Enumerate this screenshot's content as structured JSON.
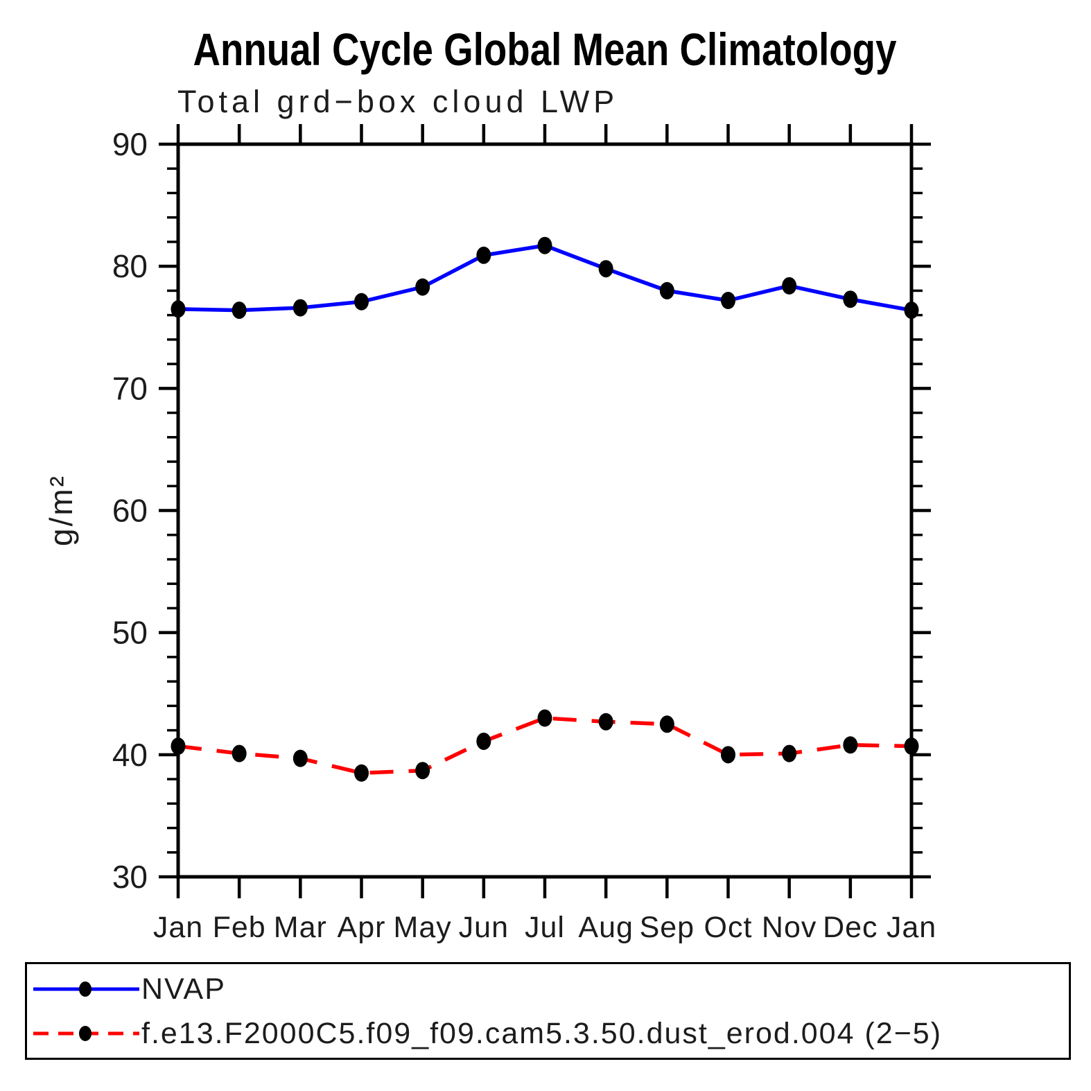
{
  "figure": {
    "background_color": "#ffffff",
    "axis_color": "#000000"
  },
  "chart_data": {
    "type": "line",
    "title": "Annual Cycle Global Mean Climatology",
    "subtitle": "Total grd−box cloud LWP",
    "ylabel": "g/m²",
    "xlabel": "",
    "categories": [
      "Jan",
      "Feb",
      "Mar",
      "Apr",
      "May",
      "Jun",
      "Jul",
      "Aug",
      "Sep",
      "Oct",
      "Nov",
      "Dec",
      "Jan"
    ],
    "ylim": [
      30,
      90
    ],
    "ytick_major": [
      30,
      40,
      50,
      60,
      70,
      80,
      90
    ],
    "ytick_minor_step": 2,
    "grid": false,
    "legend_position": "bottom",
    "series": [
      {
        "name": "NVAP",
        "line_style": "solid",
        "color": "#0000ff",
        "marker": "filled-circle",
        "marker_color": "#000000",
        "values": [
          76.5,
          76.4,
          76.6,
          77.1,
          78.3,
          80.9,
          81.7,
          79.8,
          78.0,
          77.2,
          78.4,
          77.3,
          76.4
        ]
      },
      {
        "name": "f.e13.F2000C5.f09_f09.cam5.3.50.dust_erod.004 (2−5)",
        "line_style": "dashed",
        "color": "#ff0000",
        "marker": "filled-circle",
        "marker_color": "#000000",
        "values": [
          40.7,
          40.1,
          39.7,
          38.5,
          38.7,
          41.1,
          43.0,
          42.7,
          42.5,
          40.0,
          40.1,
          40.8,
          40.7
        ]
      }
    ]
  }
}
